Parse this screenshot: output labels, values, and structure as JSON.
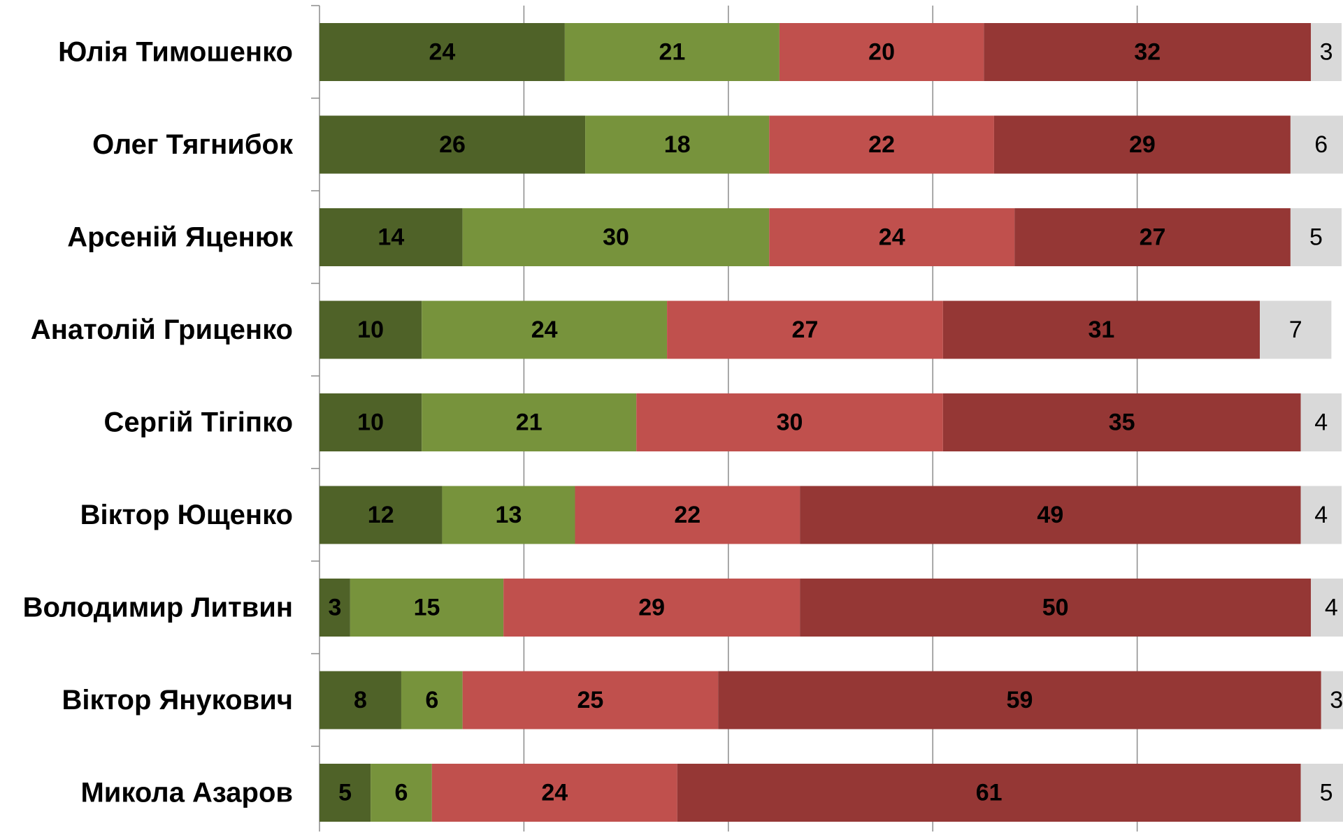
{
  "chart_data": {
    "type": "bar",
    "orientation": "horizontal",
    "stacked": true,
    "categories": [
      "Юлія Тимошенко",
      "Олег Тягнибок",
      "Арсеній Яценюк",
      "Анатолій Гриценко",
      "Сергій Тігіпко",
      "Віктор Ющенко",
      "Володимир Литвин",
      "Віктор Янукович",
      "Микола Азаров"
    ],
    "series": [
      {
        "values": [
          24,
          26,
          14,
          10,
          10,
          12,
          3,
          8,
          5
        ],
        "color": "#4f6228",
        "label_color": "#000000"
      },
      {
        "values": [
          21,
          18,
          30,
          24,
          21,
          13,
          15,
          6,
          6
        ],
        "color": "#77933c",
        "label_color": "#000000"
      },
      {
        "values": [
          20,
          22,
          24,
          27,
          30,
          22,
          29,
          25,
          24
        ],
        "color": "#c0504d",
        "label_color": "#000000"
      },
      {
        "values": [
          32,
          29,
          27,
          31,
          35,
          49,
          50,
          59,
          61
        ],
        "color": "#953735",
        "label_color": "#000000"
      },
      {
        "values": [
          3,
          6,
          5,
          7,
          4,
          4,
          4,
          3,
          5
        ],
        "color": "#d9d9d9",
        "label_color": "#000000"
      }
    ],
    "bold_series": [
      true,
      true,
      true,
      true,
      false
    ],
    "xlim": [
      0,
      100
    ],
    "gridlines": true,
    "legend": "none",
    "title": "",
    "xlabel": "",
    "ylabel": ""
  }
}
